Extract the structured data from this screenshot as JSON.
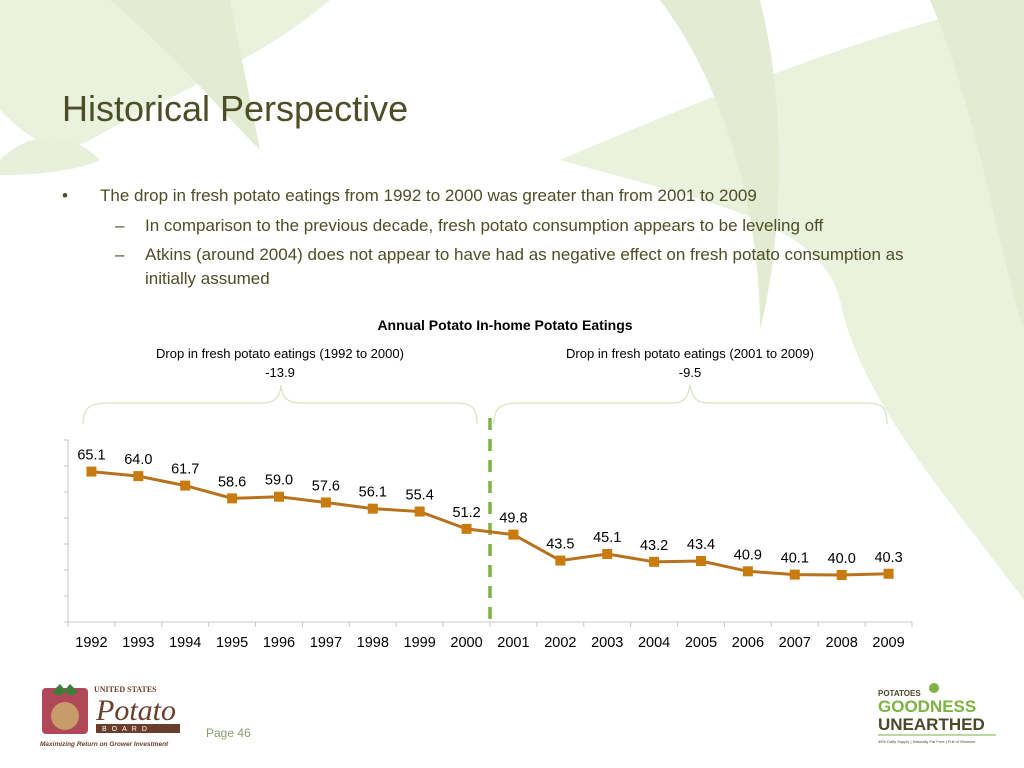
{
  "title": "Historical Perspective",
  "bullets": [
    {
      "text": "The drop in fresh potato eatings from 1992 to 2000 was greater than from 2001 to 2009",
      "sub": [
        "In comparison to the previous decade, fresh potato consumption appears to be leveling off",
        "Atkins (around 2004) does not appear to have had as negative effect on fresh potato consumption as initially assumed"
      ]
    }
  ],
  "page_label": "Page 46",
  "colors": {
    "line": "#b8721e",
    "marker": "#c97b10",
    "divider": "#7cb342",
    "title_text": "#4d4d27"
  },
  "chart_data": {
    "type": "line",
    "title": "Annual Potato In-home Potato Eatings",
    "categories": [
      "1992",
      "1993",
      "1994",
      "1995",
      "1996",
      "1997",
      "1998",
      "1999",
      "2000",
      "2001",
      "2002",
      "2003",
      "2004",
      "2005",
      "2006",
      "2007",
      "2008",
      "2009"
    ],
    "series": [
      {
        "values": [
          65.1,
          64.0,
          61.7,
          58.6,
          59.0,
          57.6,
          56.1,
          55.4,
          51.2,
          49.8,
          43.5,
          45.1,
          43.2,
          43.4,
          40.9,
          40.1,
          40.0,
          40.3
        ]
      }
    ],
    "data_labels": [
      "65.1",
      "64.0",
      "61.7",
      "58.6",
      "59.0",
      "57.6",
      "56.1",
      "55.4",
      "51.2",
      "49.8",
      "43.5",
      "45.1",
      "43.2",
      "43.4",
      "40.9",
      "40.1",
      "40.0",
      "40.3"
    ],
    "ylim": [
      40,
      65
    ],
    "divider_between": [
      "2000",
      "2001"
    ],
    "annotations": [
      {
        "label": "Drop in fresh potato eatings (1992 to 2000)",
        "value": "-13.9"
      },
      {
        "label": "Drop in fresh potato eatings (2001 to 2009)",
        "value": "-9.5"
      }
    ],
    "grid": false
  }
}
